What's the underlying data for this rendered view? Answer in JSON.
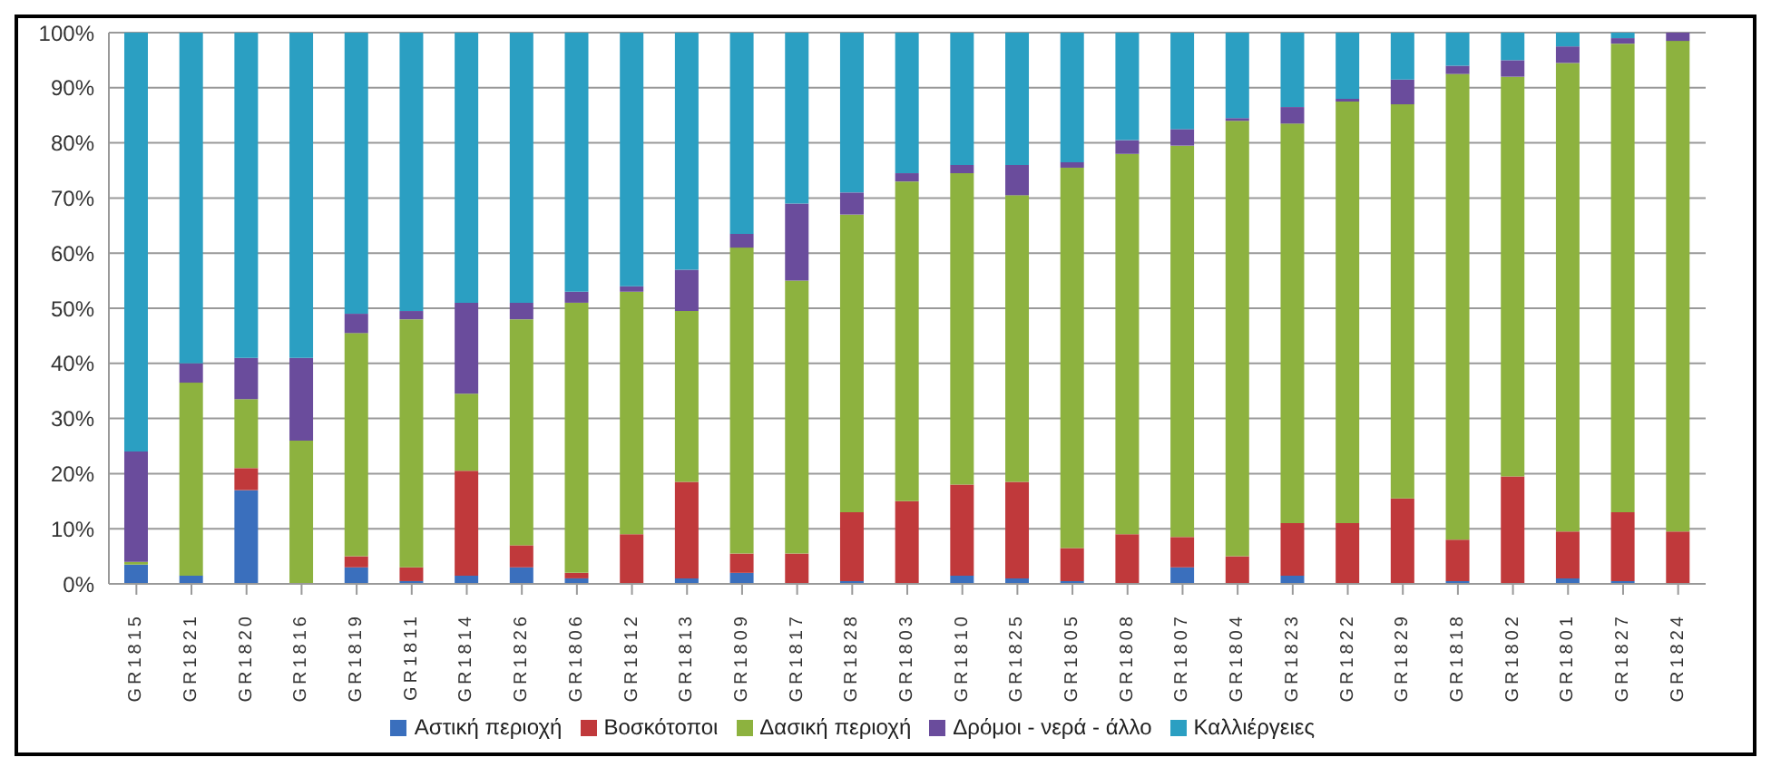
{
  "chart_data": {
    "type": "bar",
    "stacked": true,
    "categories": [
      "GR1815",
      "GR1821",
      "GR1820",
      "GR1816",
      "GR1819",
      "GR1811",
      "GR1814",
      "GR1826",
      "GR1806",
      "GR1812",
      "GR1813",
      "GR1809",
      "GR1817",
      "GR1828",
      "GR1803",
      "GR1810",
      "GR1825",
      "GR1805",
      "GR1808",
      "GR1807",
      "GR1804",
      "GR1823",
      "GR1822",
      "GR1829",
      "GR1818",
      "GR1802",
      "GR1801",
      "GR1827",
      "GR1824"
    ],
    "series": [
      {
        "name": "Αστική περιοχή",
        "color": "#3a6fbd",
        "values": [
          3.5,
          1.5,
          17,
          0,
          3,
          0.5,
          1.5,
          3,
          1,
          0,
          1,
          2,
          0,
          0.5,
          0,
          1.5,
          1,
          0.5,
          0,
          3,
          0,
          1.5,
          0,
          0,
          0.5,
          0,
          1,
          0.5,
          0
        ]
      },
      {
        "name": "Βοσκότοποι",
        "color": "#c0393b",
        "values": [
          0,
          0,
          4,
          0,
          2,
          2.5,
          19,
          4,
          1,
          9,
          17.5,
          3.5,
          5.5,
          12.5,
          15,
          16.5,
          17.5,
          6,
          9,
          5.5,
          5,
          9.5,
          11,
          15.5,
          7.5,
          19.5,
          8.5,
          12.5,
          9.5
        ]
      },
      {
        "name": "Δασική περιοχή",
        "color": "#8db23f",
        "values": [
          0.5,
          35,
          12.5,
          26,
          40.5,
          45,
          14,
          41,
          49,
          44,
          31,
          55.5,
          49.5,
          54,
          58,
          56.5,
          52,
          69,
          69,
          71,
          79,
          72.5,
          76.5,
          71.5,
          84.5,
          72.5,
          85,
          85,
          89
        ]
      },
      {
        "name": "Δρόμοι - νερά - άλλο",
        "color": "#6a4c9c",
        "values": [
          20,
          3.5,
          7.5,
          15,
          3.5,
          1.5,
          16.5,
          3,
          2,
          1,
          7.5,
          2.5,
          14,
          4,
          1.5,
          1.5,
          5.5,
          1,
          2.5,
          3,
          0.5,
          3,
          0.5,
          4.5,
          1.5,
          3,
          3,
          1,
          1.5
        ]
      },
      {
        "name": "Καλλιέργειες",
        "color": "#2b9fc2",
        "values": [
          76,
          60,
          59,
          59,
          51,
          50.5,
          49,
          49,
          47,
          46,
          43,
          36.5,
          31,
          29,
          25.5,
          24,
          24,
          23.5,
          19.5,
          17.5,
          15.5,
          13.5,
          12,
          8.5,
          6,
          5,
          2.5,
          1,
          0
        ]
      }
    ],
    "ylim": [
      0,
      100
    ],
    "yticks": [
      {
        "value": 0,
        "label": "0%"
      },
      {
        "value": 10,
        "label": "10%"
      },
      {
        "value": 20,
        "label": "20%"
      },
      {
        "value": 30,
        "label": "30%"
      },
      {
        "value": 40,
        "label": "40%"
      },
      {
        "value": 50,
        "label": "50%"
      },
      {
        "value": 60,
        "label": "60%"
      },
      {
        "value": 70,
        "label": "70%"
      },
      {
        "value": 80,
        "label": "80%"
      },
      {
        "value": 90,
        "label": "90%"
      },
      {
        "value": 100,
        "label": "100%"
      }
    ],
    "grid": "y",
    "legend": "bottom"
  }
}
